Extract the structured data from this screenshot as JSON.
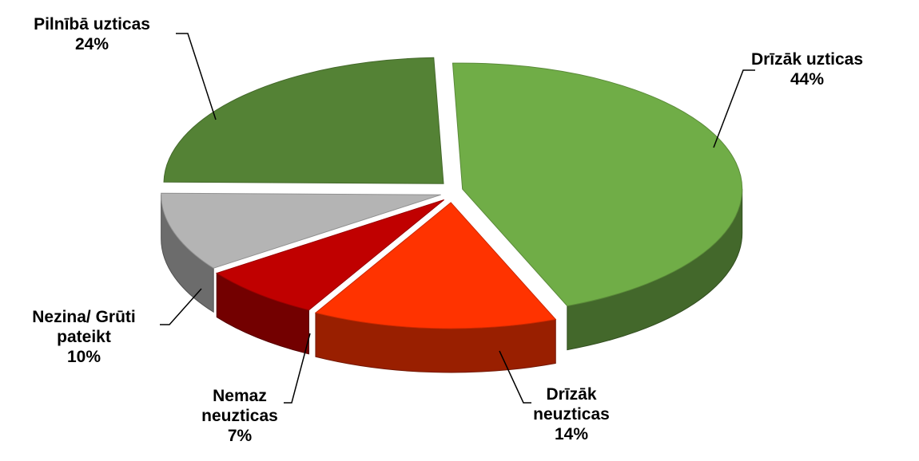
{
  "chart_data": {
    "type": "pie3d",
    "categories": [
      "Drīzāk uzticas",
      "Drīzāk neuzticas",
      "Nemaz neuzticas",
      "Nezina/ Grūti pateikt",
      "Pilnībā uzticas"
    ],
    "values": [
      44,
      14,
      7,
      10,
      24
    ],
    "value_labels": [
      "44%",
      "14%",
      "7%",
      "10%",
      "24%"
    ],
    "colors": [
      "#70ad47",
      "#ff3300",
      "#c00000",
      "#b4b4b4",
      "#548235"
    ]
  }
}
